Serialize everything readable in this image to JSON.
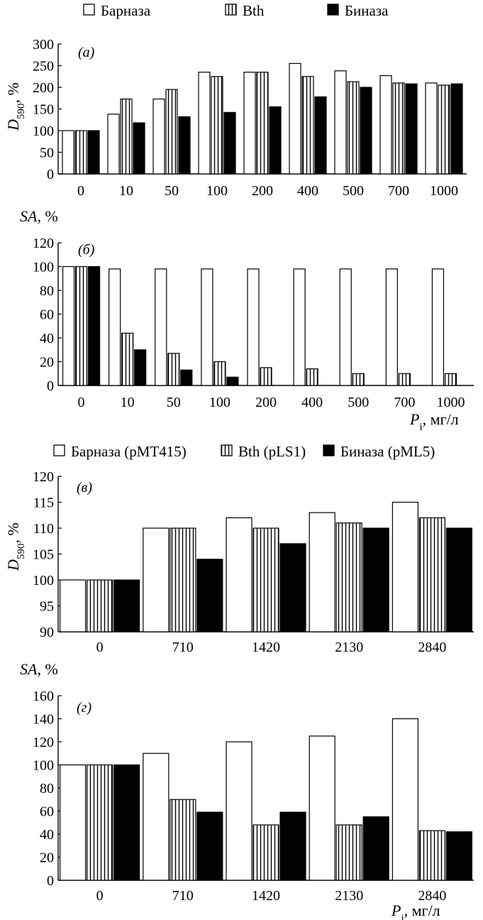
{
  "legend_top": [
    "Барназа",
    "Bth",
    "Биназа"
  ],
  "legend_bottom": [
    "Барназа (pMT415)",
    "Bth (pLS1)",
    "Биназа (pML5)"
  ],
  "patterns": [
    "white",
    "hatched",
    "black"
  ],
  "chart_data": [
    {
      "type": "bar",
      "panel_label": "(а)",
      "ylabel": "D590, %",
      "ylabel_parts": [
        "D",
        "590",
        ", %"
      ],
      "xlabel": "",
      "categories": [
        "0",
        "10",
        "50",
        "100",
        "200",
        "400",
        "500",
        "700",
        "1000"
      ],
      "ylim": [
        0,
        300
      ],
      "yticks": [
        0,
        50,
        100,
        150,
        200,
        250,
        300
      ],
      "series": [
        {
          "name": "Барназа",
          "values": [
            100,
            138,
            173,
            235,
            235,
            255,
            238,
            227,
            210
          ]
        },
        {
          "name": "Bth",
          "values": [
            100,
            173,
            195,
            225,
            235,
            225,
            213,
            210,
            205
          ]
        },
        {
          "name": "Биназа",
          "values": [
            100,
            118,
            132,
            142,
            155,
            178,
            200,
            208,
            208
          ]
        }
      ]
    },
    {
      "type": "bar",
      "panel_label": "(б)",
      "ylabel": "SA, %",
      "xlabel": "Pi, мг/л",
      "xlabel_parts": [
        "P",
        "i",
        ", мг/л"
      ],
      "categories": [
        "0",
        "10",
        "50",
        "100",
        "200",
        "400",
        "500",
        "700",
        "1000"
      ],
      "ylim": [
        0,
        120
      ],
      "yticks": [
        0,
        20,
        40,
        60,
        80,
        100,
        120
      ],
      "series": [
        {
          "name": "Барназа",
          "values": [
            100,
            98,
            98,
            98,
            98,
            98,
            98,
            98,
            98
          ]
        },
        {
          "name": "Bth",
          "values": [
            100,
            44,
            27,
            20,
            15,
            14,
            10,
            10,
            10
          ]
        },
        {
          "name": "Биназа",
          "values": [
            100,
            30,
            13,
            7,
            0,
            0,
            0,
            0,
            0
          ]
        }
      ]
    },
    {
      "type": "bar",
      "panel_label": "(в)",
      "ylabel": "D590, %",
      "ylabel_parts": [
        "D",
        "590",
        ", %"
      ],
      "xlabel": "",
      "categories": [
        "0",
        "710",
        "1420",
        "2130",
        "2840"
      ],
      "ylim": [
        90,
        120
      ],
      "yticks": [
        90,
        95,
        100,
        105,
        110,
        115,
        120
      ],
      "series": [
        {
          "name": "Барназа (pMT415)",
          "values": [
            100,
            110,
            112,
            113,
            115
          ]
        },
        {
          "name": "Bth (pLS1)",
          "values": [
            100,
            110,
            110,
            111,
            112
          ]
        },
        {
          "name": "Биназа (pML5)",
          "values": [
            100,
            104,
            107,
            110,
            110
          ]
        }
      ]
    },
    {
      "type": "bar",
      "panel_label": "(г)",
      "ylabel": "SA, %",
      "xlabel": "Pi, мг/л",
      "xlabel_parts": [
        "P",
        "i",
        ", мг/л"
      ],
      "categories": [
        "0",
        "710",
        "1420",
        "2130",
        "2840"
      ],
      "ylim": [
        0,
        160
      ],
      "yticks": [
        0,
        20,
        40,
        60,
        80,
        100,
        120,
        140,
        160
      ],
      "series": [
        {
          "name": "Барназа (pMT415)",
          "values": [
            100,
            110,
            120,
            125,
            140
          ]
        },
        {
          "name": "Bth (pLS1)",
          "values": [
            100,
            70,
            48,
            48,
            43
          ]
        },
        {
          "name": "Биназа (pML5)",
          "values": [
            100,
            59,
            59,
            55,
            42
          ]
        }
      ]
    }
  ]
}
